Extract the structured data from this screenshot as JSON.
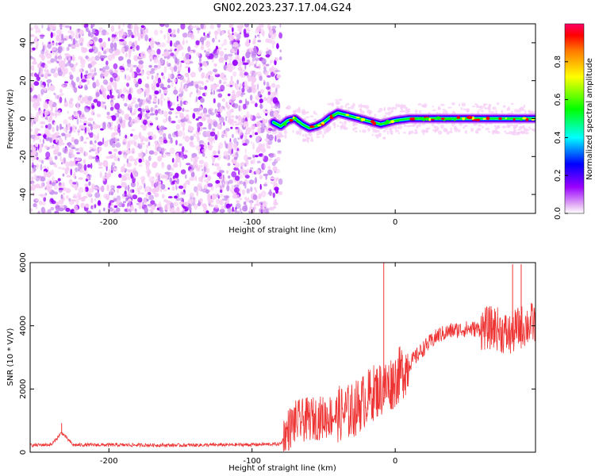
{
  "figure": {
    "title": "GN02.2023.237.17.04.G24"
  },
  "chart_data": [
    {
      "type": "heatmap",
      "xlabel": "Height of straight line (km)",
      "ylabel": "Frequency (Hz)",
      "xlim": [
        -255,
        98
      ],
      "ylim": [
        -50,
        50
      ],
      "xticks": [
        -200,
        -100,
        0
      ],
      "yticks": [
        -40,
        -20,
        0,
        20,
        40
      ],
      "noise_region_x": [
        -255,
        -80
      ],
      "ridge_x": [
        -85,
        -80,
        -75,
        -70,
        -65,
        -60,
        -55,
        -50,
        -45,
        -40,
        -35,
        -30,
        -25,
        -20,
        -15,
        -10,
        -5,
        0,
        10,
        20,
        40,
        60,
        80,
        98
      ],
      "ridge_y": [
        -2,
        -4,
        -1,
        0,
        -3,
        -5,
        -4,
        -2,
        1,
        3,
        2,
        1,
        0,
        -1,
        -2,
        -3,
        -2,
        -1,
        0,
        0,
        0,
        0,
        0,
        0
      ],
      "colormap": [
        "#f5ccf5",
        "#9900ff",
        "#0000ff",
        "#00ffff",
        "#00ff00",
        "#ffff00",
        "#ff0000"
      ],
      "colorbar": {
        "label": "Normalized spectral amplitude",
        "range": [
          0,
          1
        ],
        "ticks": [
          "0.0",
          "0.2",
          "0.4",
          "0.6",
          "0.8"
        ]
      }
    },
    {
      "type": "line",
      "xlabel": "Height of straight line (km)",
      "ylabel": "SNR (10 * V/V)",
      "xlim": [
        -255,
        98
      ],
      "ylim": [
        0,
        6000
      ],
      "xticks": [
        -200,
        -100,
        0
      ],
      "yticks": [
        0,
        2000,
        4000,
        6000
      ],
      "color": "#ee3333",
      "series": [
        {
          "x": [
            -255,
            -240,
            -233,
            -225,
            -200,
            -150,
            -100,
            -80,
            -75,
            -70,
            -65,
            -60,
            -50,
            -40,
            -30,
            -20,
            -15,
            -10,
            -5,
            0,
            10,
            20,
            30,
            40,
            50,
            60,
            70,
            75,
            80,
            85,
            90,
            98
          ],
          "y": [
            220,
            240,
            620,
            230,
            230,
            220,
            240,
            260,
            700,
            950,
            1000,
            1050,
            1100,
            1200,
            1300,
            1700,
            1900,
            2000,
            2100,
            2300,
            2800,
            3300,
            3700,
            3850,
            3900,
            3900,
            3950,
            3800,
            3700,
            3900,
            4000,
            4100
          ]
        }
      ],
      "spikes": [
        {
          "x": -233,
          "y": 920
        },
        {
          "x": -8,
          "y": 6000
        },
        {
          "x": 82,
          "y": 5950
        },
        {
          "x": 88,
          "y": 5950
        }
      ]
    }
  ]
}
